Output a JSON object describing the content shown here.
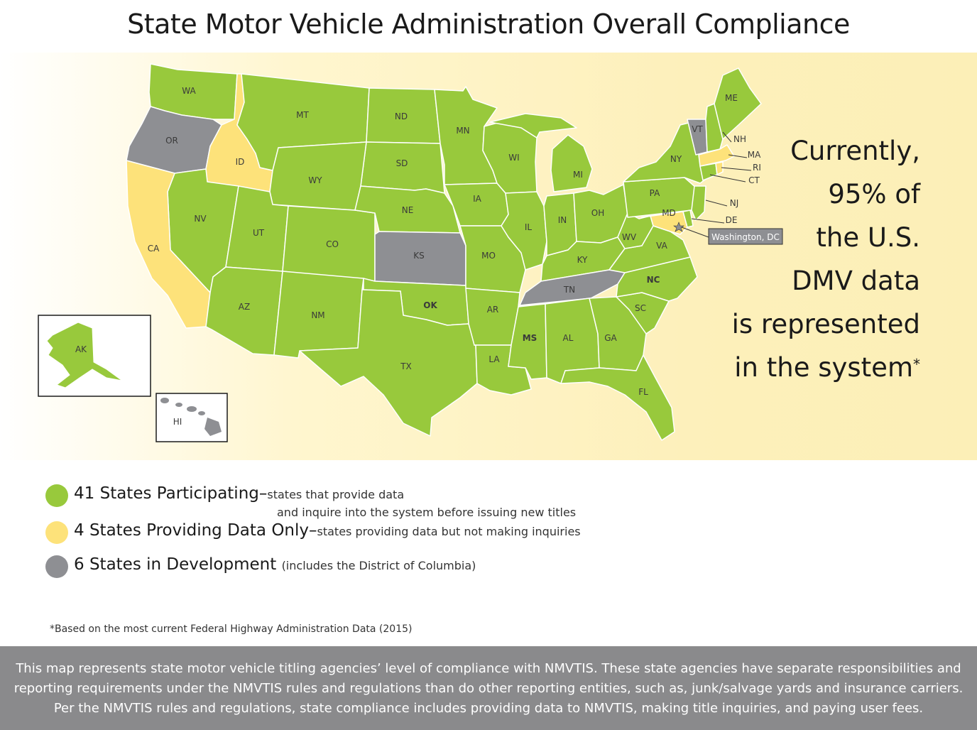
{
  "title": "State Motor Vehicle Administration Overall Compliance",
  "colors": {
    "participating": "#98c93c",
    "data_only": "#fde27a",
    "development": "#8e8f93",
    "border": "#ffffff"
  },
  "callout": {
    "line1": "Currently,",
    "line2": "95% of",
    "line3": "the U.S.",
    "line4": "DMV data",
    "line5": "is represented",
    "line6": "in the system",
    "asterisk": "*"
  },
  "dc_callout": "Washington, DC",
  "states": {
    "WA": "WA",
    "OR": "OR",
    "ID": "ID",
    "MT": "MT",
    "ND": "ND",
    "MN": "MN",
    "WI": "WI",
    "MI": "MI",
    "ME": "ME",
    "VT": "VT",
    "NH": "NH",
    "MA": "MA",
    "RI": "RI",
    "CT": "CT",
    "NY": "NY",
    "NJ": "NJ",
    "DE": "DE",
    "MD": "MD",
    "PA": "PA",
    "SD": "SD",
    "WY": "WY",
    "NV": "NV",
    "CA": "CA",
    "UT": "UT",
    "CO": "CO",
    "NE": "NE",
    "IA": "IA",
    "IL": "IL",
    "IN": "IN",
    "OH": "OH",
    "WV": "WV",
    "VA": "VA",
    "KY": "KY",
    "KS": "KS",
    "MO": "MO",
    "TN": "TN",
    "NC": "NC",
    "SC": "SC",
    "GA": "GA",
    "AL": "AL",
    "MS": "MS",
    "AR": "AR",
    "LA": "LA",
    "OK": "OK",
    "TX": "TX",
    "NM": "NM",
    "AZ": "AZ",
    "FL": "FL",
    "AK": "AK",
    "HI": "HI"
  },
  "legend": [
    {
      "count": "41",
      "label": " States Participating",
      "dash": "–",
      "desc1": "states that provide data",
      "desc2": "and inquire into the system before issuing new titles",
      "color": "#98c93c"
    },
    {
      "count": "4",
      "label": " States Providing Data Only",
      "dash": "–",
      "desc1": "states providing data but not making inquiries",
      "desc2": "",
      "color": "#fde27a"
    },
    {
      "count": "6",
      "label": " States in Development",
      "dash": "",
      "desc1": "(includes the District of Columbia)",
      "desc2": "",
      "color": "#8e8f93"
    }
  ],
  "footnote": "*Based on the most current Federal Highway Administration Data (2015)",
  "bottom_text": {
    "line1": "This map represents state motor vehicle titling agencies’ level of compliance with NMVTIS. These state agencies have separate responsibilities and",
    "line2": "reporting requirements under the NMVTIS rules and regulations than do other reporting entities, such as, junk/salvage yards and insurance carriers.",
    "line3": "Per the NMVTIS rules and regulations, state compliance includes providing data to NMVTIS, making title inquiries, and paying user fees."
  }
}
